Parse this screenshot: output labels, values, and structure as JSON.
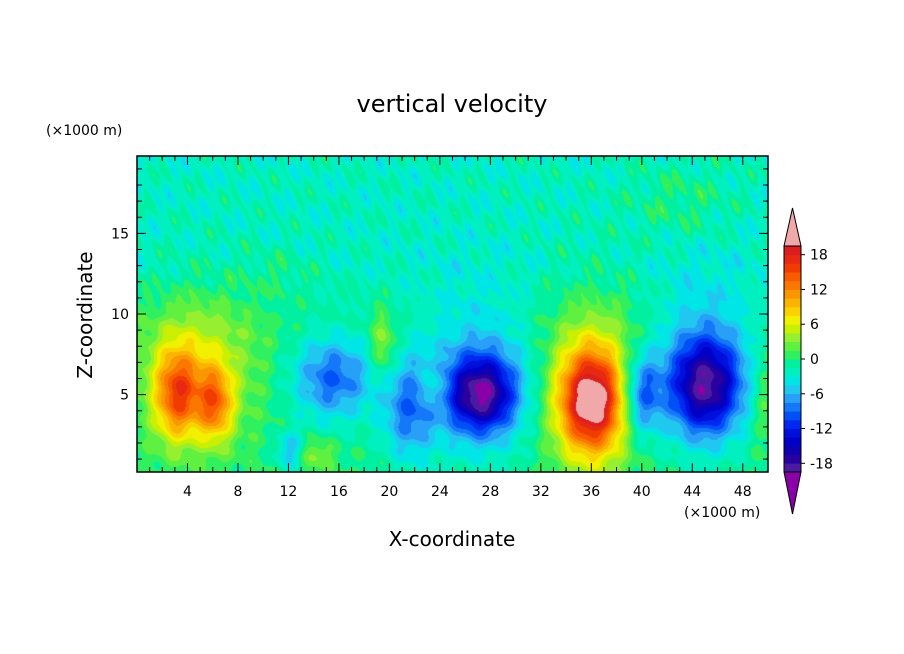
{
  "chart_data": {
    "type": "heatmap",
    "title": "vertical velocity",
    "xlabel": "X-coordinate",
    "ylabel": "Z-coordinate",
    "x_unit": "(×1000 m)",
    "z_unit": "(×1000 m)",
    "xlim": [
      0,
      50
    ],
    "zlim": [
      0.2,
      19.8
    ],
    "x_ticks": [
      "4",
      "8",
      "12",
      "16",
      "20",
      "24",
      "28",
      "32",
      "36",
      "40",
      "44",
      "48"
    ],
    "z_ticks": [
      "5",
      "10",
      "15"
    ],
    "colorbar": {
      "levels": [
        -21,
        -19.5,
        -18,
        -16.5,
        -15,
        -13.5,
        -12,
        -10.5,
        -9,
        -7.5,
        -6,
        -4.5,
        -3,
        -1.5,
        0,
        1.5,
        3,
        4.5,
        6,
        7.5,
        9,
        10.5,
        12,
        13.5,
        15,
        16.5,
        18,
        19.5,
        21
      ],
      "tick_labels": [
        "18",
        "12",
        "6",
        "0",
        "-6",
        "-12",
        "-18"
      ],
      "tick_values": [
        18,
        12,
        6,
        0,
        -6,
        -12,
        -18
      ],
      "extend": "both",
      "colors": [
        "#8a00a8",
        "#4b1aa0",
        "#2a00a0",
        "#1000b0",
        "#0000c8",
        "#0010dc",
        "#0028f0",
        "#0050f8",
        "#1478f8",
        "#28a0f8",
        "#20c8f0",
        "#00e6e6",
        "#00f0c0",
        "#00f0a0",
        "#30f060",
        "#60f040",
        "#96f030",
        "#c8f000",
        "#f0f000",
        "#fad200",
        "#fab400",
        "#fa9600",
        "#fa7800",
        "#fa5a00",
        "#f03c00",
        "#e62814",
        "#dc1e1e",
        "#f0a8a8"
      ]
    },
    "features": [
      {
        "name": "updraft",
        "x": 4.5,
        "z": 5,
        "w_max": 13
      },
      {
        "name": "downdraft",
        "x": 15,
        "z": 6,
        "w_min": -9
      },
      {
        "name": "downdraft",
        "x": 27,
        "z": 5,
        "w_min": -14
      },
      {
        "name": "updraft",
        "x": 36,
        "z": 4.5,
        "w_max": 19
      },
      {
        "name": "downdraft",
        "x": 45,
        "z": 5.5,
        "w_min": -15
      }
    ]
  }
}
